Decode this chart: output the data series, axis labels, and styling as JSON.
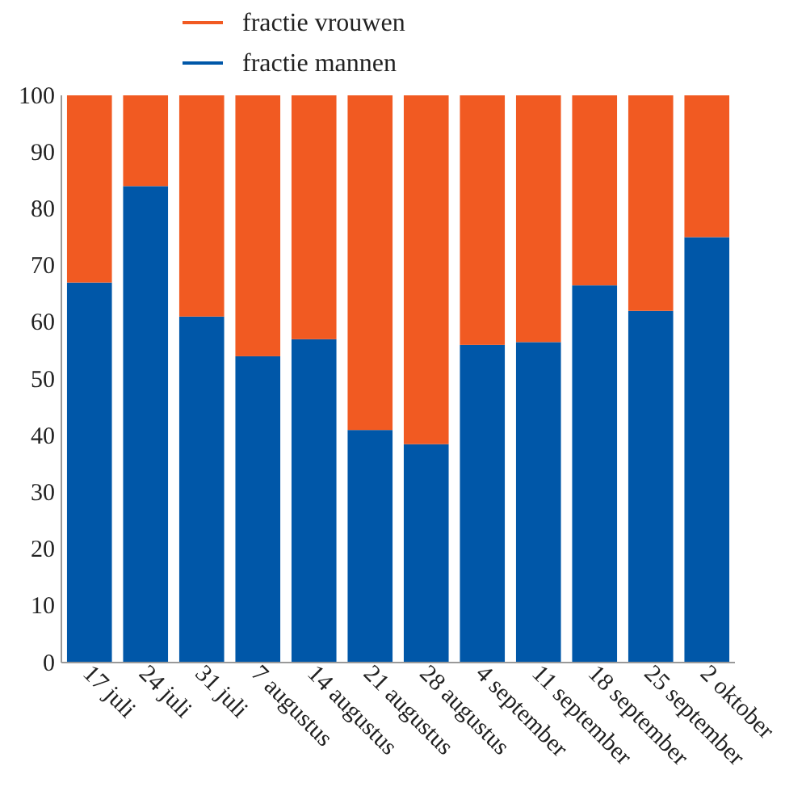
{
  "chart_data": {
    "type": "bar",
    "stacked": true,
    "legend": "top",
    "categories": [
      "17 juli",
      "24 juli",
      "31 juli",
      "7 augustus",
      "14 augustus",
      "21 augustus",
      "28 augustus",
      "4 september",
      "11 september",
      "18 september",
      "25 september",
      "2 oktober"
    ],
    "series": [
      {
        "name": "fractie mannen",
        "color": "#0057a8",
        "values": [
          67,
          84,
          61,
          54,
          57,
          41,
          38.5,
          56,
          56.5,
          66.5,
          62,
          75
        ]
      },
      {
        "name": "fractie vrouwen",
        "color": "#f15a22",
        "values": [
          33,
          16,
          39,
          46,
          43,
          59,
          61.5,
          44,
          43.5,
          33.5,
          38,
          25
        ]
      }
    ],
    "ylim": [
      0,
      100
    ],
    "yticks": [
      0,
      10,
      20,
      30,
      40,
      50,
      60,
      70,
      80,
      90,
      100
    ],
    "grid": false
  }
}
